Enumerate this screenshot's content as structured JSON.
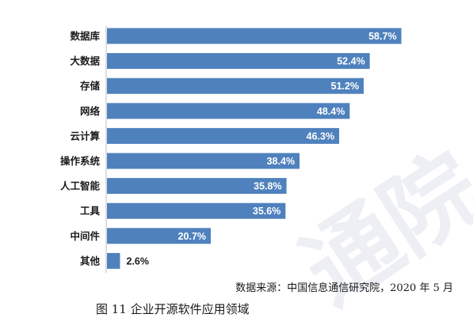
{
  "chart_data": {
    "type": "bar",
    "orientation": "horizontal",
    "categories": [
      "数据库",
      "大数据",
      "存储",
      "网络",
      "云计算",
      "操作系统",
      "人工智能",
      "工具",
      "中间件",
      "其他"
    ],
    "values": [
      58.7,
      52.4,
      51.2,
      48.4,
      46.3,
      38.4,
      35.8,
      35.6,
      20.7,
      2.6
    ],
    "value_labels": [
      "58.7%",
      "52.4%",
      "51.2%",
      "48.4%",
      "46.3%",
      "38.4%",
      "35.8%",
      "35.6%",
      "20.7%",
      "2.6%"
    ],
    "unit": "%",
    "xlim": [
      0,
      70
    ],
    "grid": false,
    "bar_color": "#4f81bd",
    "inside_label_color": "#ffffff",
    "outside_label_color": "#1a1a1a"
  },
  "source_note": "数据来源：中国信息通信研究院，2020 年 5 月",
  "caption": "图 11  企业开源软件应用领域",
  "watermark_text": "通院"
}
